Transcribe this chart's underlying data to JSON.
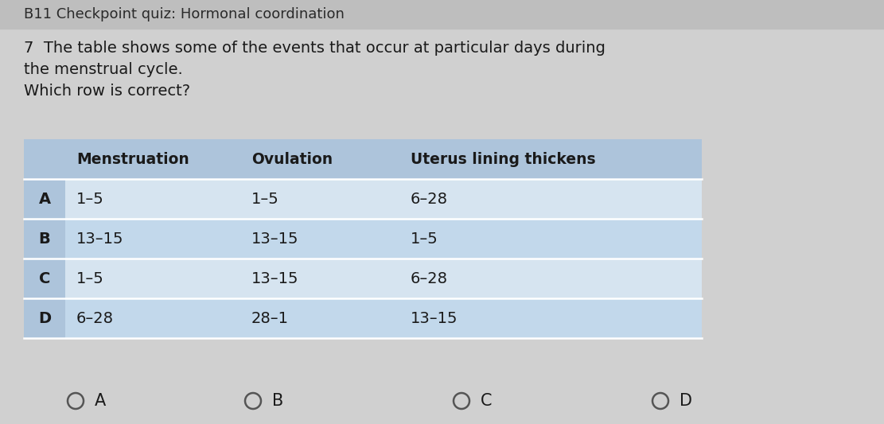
{
  "title_bar_text": "B11 Checkpoint quiz: Hormonal coordination",
  "question_text": "7  The table shows some of the events that occur at particular days during\nthe menstrual cycle.\nWhich row is correct?",
  "col_headers": [
    "",
    "Menstruation",
    "Ovulation",
    "Uterus lining thickens"
  ],
  "rows": [
    [
      "A",
      "1–5",
      "1–5",
      "6–28"
    ],
    [
      "B",
      "13–15",
      "13–15",
      "1–5"
    ],
    [
      "C",
      "1–5",
      "13–15",
      "6–28"
    ],
    [
      "D",
      "6–28",
      "28–1",
      "13–15"
    ]
  ],
  "answer_options": [
    "A",
    "B",
    "C",
    "D"
  ],
  "bg_color": "#d0d0d0",
  "title_bar_color": "#bebebe",
  "table_header_color": "#adc4db",
  "table_row_color_light": "#d6e4f0",
  "table_row_color_dark": "#c2d8eb",
  "table_label_col_color": "#adc4db",
  "text_color": "#1a1a1a",
  "title_text_color": "#2a2a2a"
}
